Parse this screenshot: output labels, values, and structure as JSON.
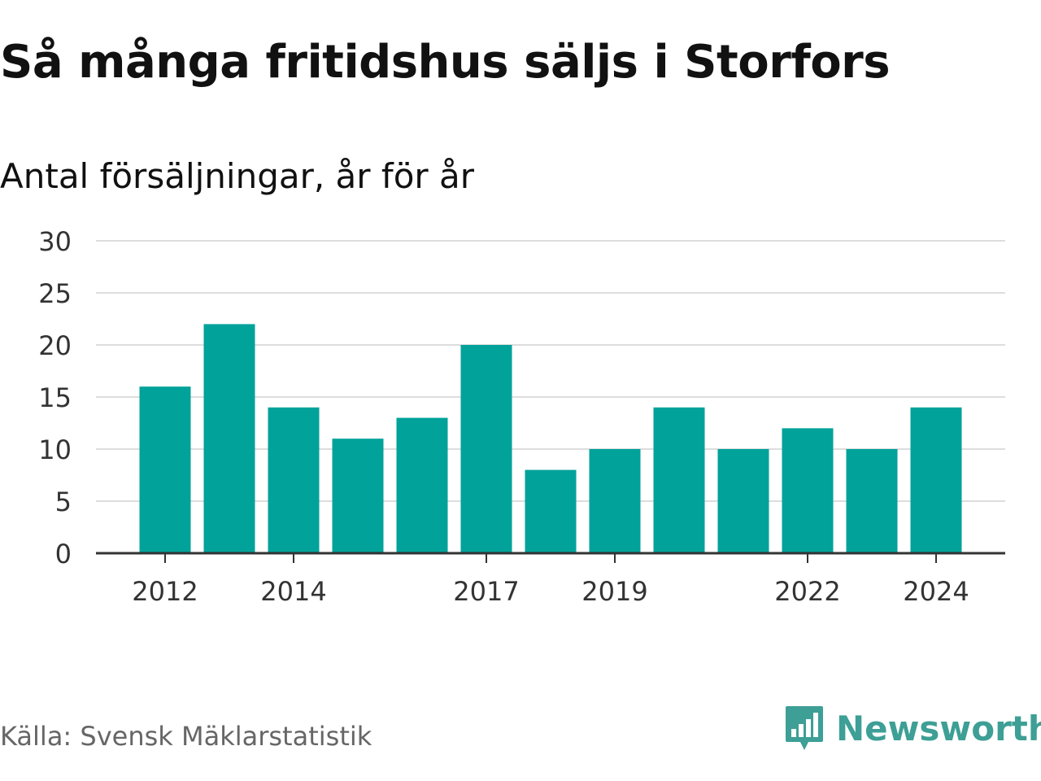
{
  "header": {
    "title": "Så många fritidshus säljs i Storfors",
    "subtitle": "Antal försäljningar, år för år"
  },
  "footer": {
    "source": "Källa: Svensk Mäklarstatistik",
    "brand": "Newsworthy",
    "brand_icon": "newsworthy-logo-icon",
    "brand_color": "#3d9f95"
  },
  "chart_data": {
    "type": "bar",
    "categories": [
      "2012",
      "2013",
      "2014",
      "2015",
      "2016",
      "2017",
      "2018",
      "2019",
      "2020",
      "2021",
      "2022",
      "2023",
      "2024"
    ],
    "values": [
      16,
      22,
      14,
      11,
      13,
      20,
      8,
      10,
      14,
      10,
      12,
      10,
      14
    ],
    "x_tick_labels": [
      "2012",
      "2014",
      "2017",
      "2019",
      "2022",
      "2024"
    ],
    "y_ticks": [
      0,
      5,
      10,
      15,
      20,
      25,
      30
    ],
    "ylim": [
      0,
      30
    ],
    "grid": true,
    "bar_color": "#00a29a",
    "grid_color": "#dddddd",
    "axis_color": "#333333"
  }
}
